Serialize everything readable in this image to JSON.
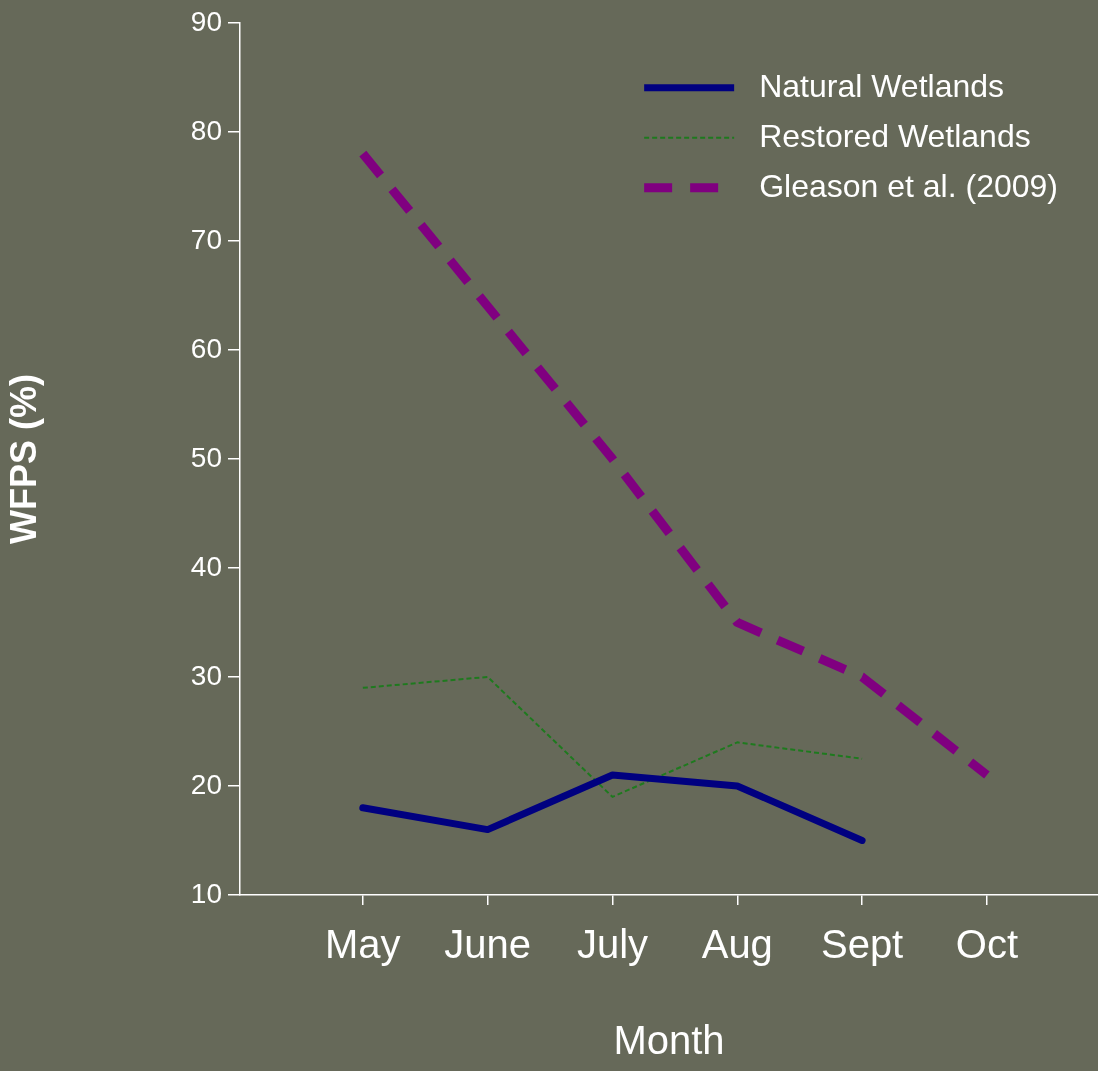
{
  "chart_data": {
    "type": "line",
    "xlabel": "Month",
    "ylabel": "WFPS (%)",
    "categories": [
      "May",
      "June",
      "July",
      "Aug",
      "Sept",
      "Oct"
    ],
    "ylim": [
      10,
      90
    ],
    "yticks": [
      10,
      20,
      30,
      40,
      50,
      60,
      70,
      80,
      90
    ],
    "grid": false,
    "legend": "top right",
    "marker": "none",
    "series": [
      {
        "name": "Natural Wetlands",
        "color": "#000080",
        "line_style": "solid",
        "values": [
          18,
          16,
          21,
          20,
          15,
          null
        ]
      },
      {
        "name": "Restored Wetlands",
        "color": "#1e7a1e",
        "line_style": "dotted",
        "values": [
          29,
          30,
          19,
          24,
          22.5,
          null
        ]
      },
      {
        "name": "Gleason et al. (2009)",
        "color": "#800080",
        "line_style": "dashed",
        "values": [
          78,
          64,
          50,
          35,
          30,
          21
        ]
      }
    ]
  }
}
